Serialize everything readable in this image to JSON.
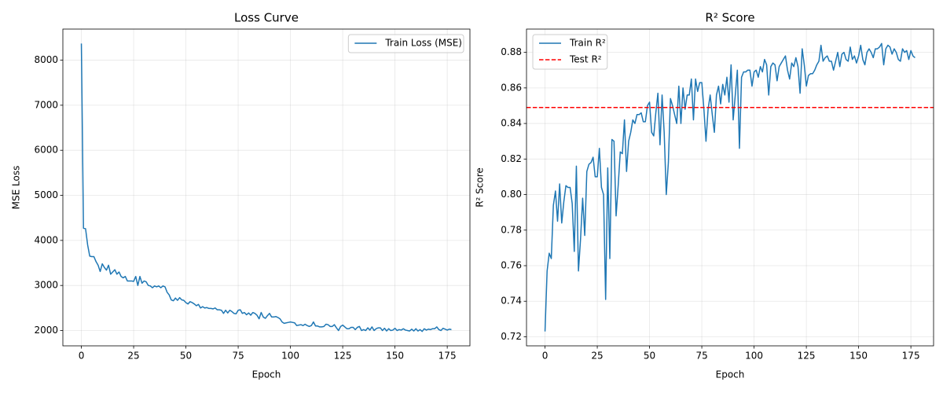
{
  "chart_data": [
    {
      "type": "line",
      "title": "Loss Curve",
      "xlabel": "Epoch",
      "ylabel": "MSE Loss",
      "x": [
        0,
        1,
        2,
        3,
        4,
        5,
        6,
        7,
        8,
        9,
        10,
        11,
        12,
        13,
        14,
        15,
        16,
        17,
        18,
        19,
        20,
        21,
        22,
        23,
        24,
        25,
        26,
        27,
        28,
        29,
        30,
        31,
        32,
        33,
        34,
        35,
        36,
        37,
        38,
        39,
        40,
        41,
        42,
        43,
        44,
        45,
        46,
        47,
        48,
        49,
        50,
        51,
        52,
        53,
        54,
        55,
        56,
        57,
        58,
        59,
        60,
        61,
        62,
        63,
        64,
        65,
        66,
        67,
        68,
        69,
        70,
        71,
        72,
        73,
        74,
        75,
        76,
        77,
        78,
        79,
        80,
        81,
        82,
        83,
        84,
        85,
        86,
        87,
        88,
        89,
        90,
        91,
        92,
        93,
        94,
        95,
        96,
        97,
        98,
        99,
        100,
        101,
        102,
        103,
        104,
        105,
        106,
        107,
        108,
        109,
        110,
        111,
        112,
        113,
        114,
        115,
        116,
        117,
        118,
        119,
        120,
        121,
        122,
        123,
        124,
        125,
        126,
        127,
        128,
        129,
        130,
        131,
        132,
        133,
        134,
        135,
        136,
        137,
        138,
        139,
        140,
        141,
        142,
        143,
        144,
        145,
        146,
        147,
        148,
        149,
        150,
        151,
        152,
        153,
        154,
        155,
        156,
        157,
        158,
        159,
        160,
        161,
        162,
        163,
        164,
        165,
        166,
        167,
        168,
        169,
        170,
        171,
        172,
        173,
        174,
        175,
        176,
        177
      ],
      "series": [
        {
          "name": "Train Loss (MSE)",
          "color": "#1f77b4",
          "values": [
            8370,
            4270,
            4260,
            3900,
            3650,
            3640,
            3640,
            3530,
            3450,
            3310,
            3480,
            3400,
            3340,
            3450,
            3250,
            3300,
            3350,
            3250,
            3300,
            3200,
            3170,
            3200,
            3100,
            3100,
            3100,
            3090,
            3200,
            3000,
            3200,
            3050,
            3100,
            3080,
            3000,
            2990,
            2950,
            2990,
            2970,
            2990,
            2950,
            2990,
            2970,
            2850,
            2790,
            2680,
            2660,
            2720,
            2670,
            2730,
            2680,
            2670,
            2620,
            2590,
            2640,
            2620,
            2590,
            2550,
            2580,
            2500,
            2530,
            2500,
            2510,
            2490,
            2490,
            2480,
            2500,
            2460,
            2460,
            2450,
            2380,
            2450,
            2390,
            2450,
            2420,
            2380,
            2370,
            2450,
            2460,
            2380,
            2400,
            2350,
            2390,
            2340,
            2400,
            2380,
            2340,
            2260,
            2400,
            2300,
            2270,
            2330,
            2380,
            2300,
            2300,
            2310,
            2290,
            2260,
            2190,
            2160,
            2170,
            2180,
            2190,
            2180,
            2170,
            2110,
            2120,
            2130,
            2110,
            2140,
            2110,
            2090,
            2110,
            2190,
            2100,
            2100,
            2080,
            2080,
            2090,
            2140,
            2130,
            2090,
            2090,
            2130,
            2060,
            2000,
            2090,
            2120,
            2080,
            2040,
            2040,
            2070,
            2070,
            2020,
            2070,
            2090,
            2000,
            2020,
            2000,
            2060,
            2010,
            2080,
            2000,
            2040,
            2060,
            2060,
            2000,
            2050,
            1990,
            2040,
            2000,
            2010,
            2050,
            2000,
            2020,
            2010,
            2040,
            2010,
            2000,
            1990,
            2030,
            1990,
            2040,
            1990,
            2020,
            1980,
            2040,
            2010,
            2030,
            2020,
            2040,
            2040,
            2080,
            2020,
            2000,
            2050,
            2030,
            2010,
            2030,
            2020
          ]
        }
      ],
      "xlim": [
        -8.85,
        185.85
      ],
      "xticks": [
        0,
        25,
        50,
        75,
        100,
        125,
        150,
        175
      ],
      "ylim": [
        1660,
        8690
      ],
      "yticks": [
        2000,
        3000,
        4000,
        5000,
        6000,
        7000,
        8000
      ],
      "grid": true,
      "legend": "upper right"
    },
    {
      "type": "line",
      "title": "R² Score",
      "xlabel": "Epoch",
      "ylabel": "R² Score",
      "x": [
        0,
        1,
        2,
        3,
        4,
        5,
        6,
        7,
        8,
        9,
        10,
        11,
        12,
        13,
        14,
        15,
        16,
        17,
        18,
        19,
        20,
        21,
        22,
        23,
        24,
        25,
        26,
        27,
        28,
        29,
        30,
        31,
        32,
        33,
        34,
        35,
        36,
        37,
        38,
        39,
        40,
        41,
        42,
        43,
        44,
        45,
        46,
        47,
        48,
        49,
        50,
        51,
        52,
        53,
        54,
        55,
        56,
        57,
        58,
        59,
        60,
        61,
        62,
        63,
        64,
        65,
        66,
        67,
        68,
        69,
        70,
        71,
        72,
        73,
        74,
        75,
        76,
        77,
        78,
        79,
        80,
        81,
        82,
        83,
        84,
        85,
        86,
        87,
        88,
        89,
        90,
        91,
        92,
        93,
        94,
        95,
        96,
        97,
        98,
        99,
        100,
        101,
        102,
        103,
        104,
        105,
        106,
        107,
        108,
        109,
        110,
        111,
        112,
        113,
        114,
        115,
        116,
        117,
        118,
        119,
        120,
        121,
        122,
        123,
        124,
        125,
        126,
        127,
        128,
        129,
        130,
        131,
        132,
        133,
        134,
        135,
        136,
        137,
        138,
        139,
        140,
        141,
        142,
        143,
        144,
        145,
        146,
        147,
        148,
        149,
        150,
        151,
        152,
        153,
        154,
        155,
        156,
        157,
        158,
        159,
        160,
        161,
        162,
        163,
        164,
        165,
        166,
        167,
        168,
        169,
        170,
        171,
        172,
        173,
        174,
        175,
        176,
        177
      ],
      "series": [
        {
          "name": "Train R²",
          "color": "#1f77b4",
          "values": [
            0.723,
            0.757,
            0.767,
            0.764,
            0.794,
            0.802,
            0.785,
            0.806,
            0.784,
            0.796,
            0.805,
            0.804,
            0.804,
            0.795,
            0.768,
            0.816,
            0.757,
            0.775,
            0.798,
            0.777,
            0.813,
            0.817,
            0.818,
            0.821,
            0.81,
            0.81,
            0.826,
            0.804,
            0.8,
            0.741,
            0.815,
            0.764,
            0.831,
            0.83,
            0.788,
            0.805,
            0.824,
            0.823,
            0.842,
            0.813,
            0.83,
            0.835,
            0.842,
            0.84,
            0.845,
            0.845,
            0.846,
            0.841,
            0.841,
            0.85,
            0.852,
            0.835,
            0.833,
            0.846,
            0.857,
            0.828,
            0.856,
            0.835,
            0.8,
            0.818,
            0.854,
            0.85,
            0.845,
            0.84,
            0.861,
            0.84,
            0.86,
            0.848,
            0.856,
            0.856,
            0.865,
            0.842,
            0.865,
            0.858,
            0.863,
            0.863,
            0.848,
            0.83,
            0.848,
            0.856,
            0.845,
            0.835,
            0.856,
            0.861,
            0.851,
            0.862,
            0.856,
            0.866,
            0.852,
            0.873,
            0.842,
            0.856,
            0.87,
            0.826,
            0.866,
            0.869,
            0.869,
            0.87,
            0.87,
            0.861,
            0.869,
            0.87,
            0.866,
            0.872,
            0.869,
            0.876,
            0.873,
            0.856,
            0.872,
            0.874,
            0.873,
            0.864,
            0.872,
            0.874,
            0.876,
            0.878,
            0.87,
            0.865,
            0.874,
            0.872,
            0.877,
            0.872,
            0.857,
            0.882,
            0.873,
            0.861,
            0.867,
            0.868,
            0.868,
            0.87,
            0.873,
            0.875,
            0.884,
            0.875,
            0.877,
            0.878,
            0.875,
            0.875,
            0.87,
            0.875,
            0.88,
            0.872,
            0.879,
            0.88,
            0.876,
            0.875,
            0.883,
            0.876,
            0.878,
            0.874,
            0.878,
            0.884,
            0.876,
            0.873,
            0.88,
            0.882,
            0.88,
            0.877,
            0.882,
            0.882,
            0.883,
            0.885,
            0.873,
            0.882,
            0.884,
            0.883,
            0.879,
            0.882,
            0.88,
            0.876,
            0.875,
            0.882,
            0.88,
            0.881,
            0.876,
            0.881,
            0.878,
            0.877
          ]
        }
      ],
      "hlines": [
        {
          "name": "Test R²",
          "value": 0.849,
          "color": "#ff0000",
          "linestyle": "dashed"
        }
      ],
      "xlim": [
        -8.85,
        185.85
      ],
      "xticks": [
        0,
        25,
        50,
        75,
        100,
        125,
        150,
        175
      ],
      "ylim": [
        0.7149,
        0.8931
      ],
      "yticks": [
        0.72,
        0.74,
        0.76,
        0.78,
        {
          "value": 0.8,
          "label": "0.80"
        },
        0.82,
        0.84,
        0.86,
        0.88
      ],
      "grid": true,
      "legend": "upper left"
    }
  ]
}
